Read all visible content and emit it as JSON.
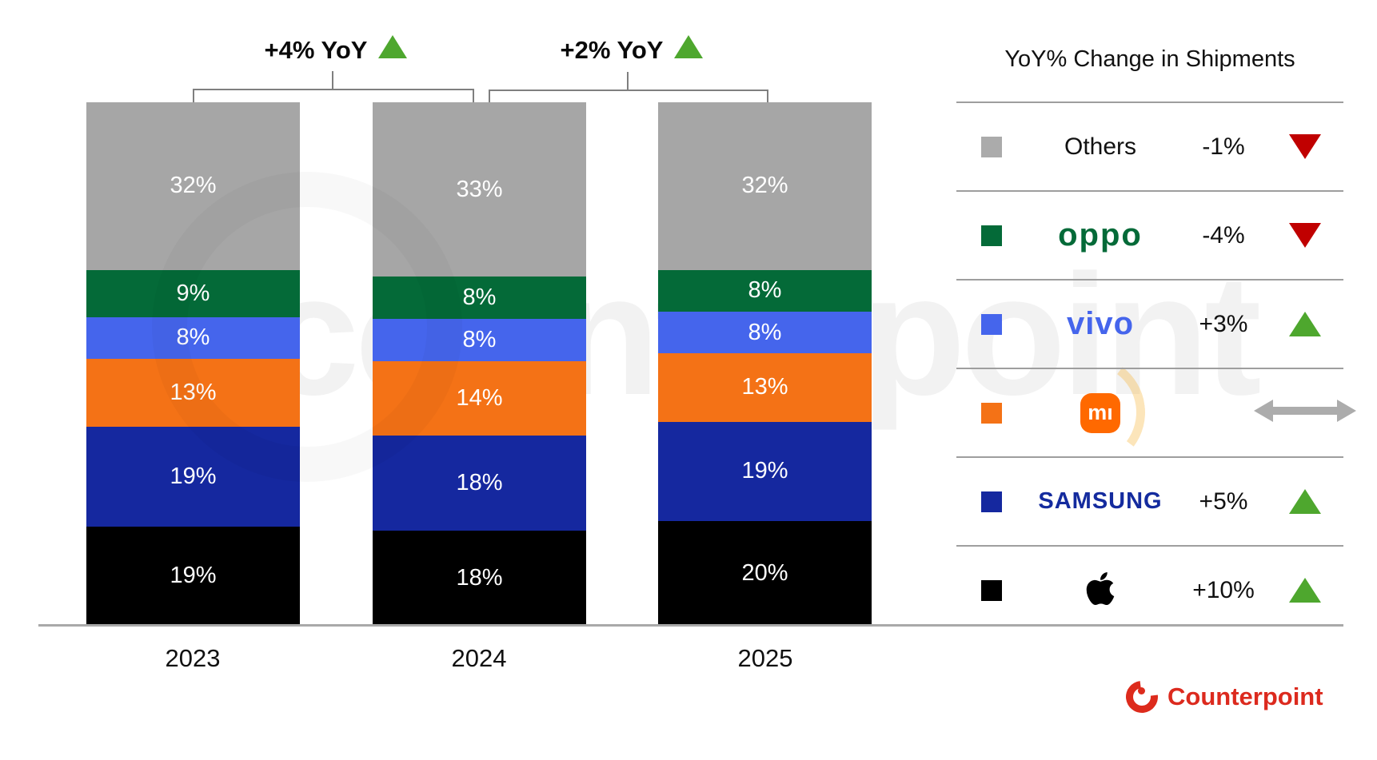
{
  "chart_data": {
    "type": "bar",
    "stacked": true,
    "categories": [
      "2023",
      "2024",
      "2025"
    ],
    "series": [
      {
        "name": "Others",
        "color": "#A6A6A6",
        "values": [
          32,
          33,
          32
        ]
      },
      {
        "name": "OPPO",
        "color": "#046A38",
        "values": [
          9,
          8,
          8
        ]
      },
      {
        "name": "vivo",
        "color": "#4565EC",
        "values": [
          8,
          8,
          8
        ]
      },
      {
        "name": "Xiaomi",
        "color": "#F47216",
        "values": [
          13,
          14,
          13
        ]
      },
      {
        "name": "Samsung",
        "color": "#15289F",
        "values": [
          19,
          18,
          19
        ]
      },
      {
        "name": "Apple",
        "color": "#000000",
        "values": [
          19,
          18,
          20
        ]
      }
    ],
    "value_suffix": "%",
    "ylim": [
      0,
      100
    ],
    "grid": false,
    "legend_position": "right",
    "annotations": [
      {
        "label": "+4% YoY",
        "direction": "up",
        "between": [
          "2023",
          "2024"
        ]
      },
      {
        "label": "+2% YoY",
        "direction": "up",
        "between": [
          "2024",
          "2025"
        ]
      }
    ]
  },
  "legend": {
    "title": "YoY% Change in Shipments",
    "rows": [
      {
        "brand": "Others",
        "style": "others",
        "color": "#ABABAB",
        "change": "-1%",
        "direction": "down"
      },
      {
        "brand": "oppo",
        "style": "oppo",
        "color": "#046A38",
        "change": "-4%",
        "direction": "down"
      },
      {
        "brand": "vivo",
        "style": "vivo",
        "color": "#4565EC",
        "change": "+3%",
        "direction": "up"
      },
      {
        "brand": "mı",
        "style": "mi",
        "color": "#F47216",
        "change": "",
        "direction": "flat"
      },
      {
        "brand": "SAMSUNG",
        "style": "samsung",
        "color": "#15289F",
        "change": "+5%",
        "direction": "up"
      },
      {
        "brand": "Apple",
        "style": "apple",
        "color": "#000000",
        "change": "+10%",
        "direction": "up"
      }
    ]
  },
  "status_colors": {
    "up": "#4EA72E",
    "down": "#C00000",
    "flat": "#ACACAC"
  },
  "watermark": "counterpoint",
  "footer": {
    "brand": "Counterpoint",
    "accent": "#DC2A1E"
  }
}
